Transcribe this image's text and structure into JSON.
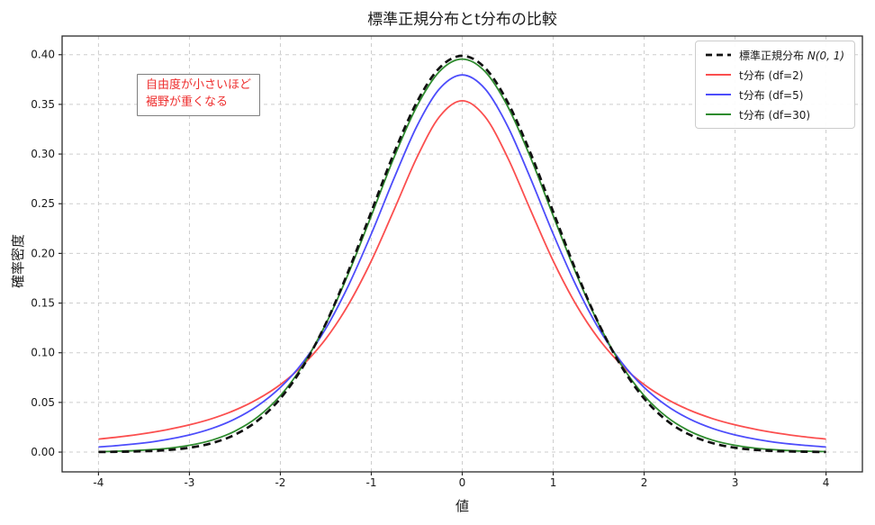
{
  "chart_data": {
    "type": "line",
    "title": "標準正規分布とt分布の比較",
    "xlabel": "値",
    "ylabel": "確率密度",
    "grid": true,
    "grid_style": "dashed",
    "legend_position": "upper right",
    "xlim": [
      -4.4,
      4.4
    ],
    "ylim": [
      -0.0199,
      0.4188
    ],
    "x_ticks": [
      -4,
      -3,
      -2,
      -1,
      0,
      1,
      2,
      3,
      4
    ],
    "x_tick_labels": [
      "-4",
      "-3",
      "-2",
      "-1",
      "0",
      "1",
      "2",
      "3",
      "4"
    ],
    "y_ticks": [
      0.0,
      0.05,
      0.1,
      0.15,
      0.2,
      0.25,
      0.3,
      0.35,
      0.4
    ],
    "y_tick_labels": [
      "0.00",
      "0.05",
      "0.10",
      "0.15",
      "0.20",
      "0.25",
      "0.30",
      "0.35",
      "0.40"
    ],
    "x": [
      -4,
      -3.75,
      -3.5,
      -3.25,
      -3,
      -2.75,
      -2.5,
      -2.25,
      -2,
      -1.75,
      -1.5,
      -1.25,
      -1,
      -0.75,
      -0.5,
      -0.25,
      0,
      0.25,
      0.5,
      0.75,
      1,
      1.25,
      1.5,
      1.75,
      2,
      2.25,
      2.5,
      2.75,
      3,
      3.25,
      3.5,
      3.75,
      4
    ],
    "series": [
      {
        "name": "標準正規分布 N(0, 1)",
        "color": "#111111",
        "dashed": true,
        "line_width": 2.7,
        "z": 4,
        "values": [
          0.0001,
          0.0004,
          0.0009,
          0.002,
          0.0044,
          0.0091,
          0.0175,
          0.0317,
          0.054,
          0.0862,
          0.1295,
          0.1826,
          0.242,
          0.3011,
          0.3521,
          0.3867,
          0.3989,
          0.3867,
          0.3521,
          0.3011,
          0.242,
          0.1826,
          0.1295,
          0.0862,
          0.054,
          0.0317,
          0.0175,
          0.0091,
          0.0044,
          0.002,
          0.0009,
          0.0004,
          0.0001
        ]
      },
      {
        "name": "t分布 (df=2)",
        "color": "#fb4f4f",
        "dashed": false,
        "line_width": 1.8,
        "z": 1,
        "values": [
          0.0131,
          0.0155,
          0.0186,
          0.0225,
          0.0274,
          0.0338,
          0.0422,
          0.0533,
          0.068,
          0.0878,
          0.1141,
          0.1487,
          0.1925,
          0.2438,
          0.2963,
          0.3376,
          0.3536,
          0.3376,
          0.2963,
          0.2438,
          0.1925,
          0.1487,
          0.1141,
          0.0878,
          0.068,
          0.0533,
          0.0422,
          0.0338,
          0.0274,
          0.0225,
          0.0186,
          0.0155,
          0.0131
        ]
      },
      {
        "name": "t分布 (df=5)",
        "color": "#4d4dfb",
        "dashed": false,
        "line_width": 1.8,
        "z": 2,
        "values": [
          0.0051,
          0.0069,
          0.0092,
          0.0126,
          0.0173,
          0.0239,
          0.0333,
          0.0466,
          0.0651,
          0.0905,
          0.1245,
          0.1679,
          0.2197,
          0.2756,
          0.3279,
          0.3657,
          0.3796,
          0.3657,
          0.3279,
          0.2756,
          0.2197,
          0.1679,
          0.1245,
          0.0905,
          0.0651,
          0.0466,
          0.0333,
          0.0239,
          0.0173,
          0.0126,
          0.0092,
          0.0069,
          0.0051
        ]
      },
      {
        "name": "t分布 (df=30)",
        "color": "#2e8b2e",
        "dashed": false,
        "line_width": 1.8,
        "z": 3,
        "values": [
          0.0005,
          0.001,
          0.002,
          0.0037,
          0.0068,
          0.0121,
          0.0211,
          0.0353,
          0.0569,
          0.0877,
          0.129,
          0.1801,
          0.238,
          0.2966,
          0.3479,
          0.3831,
          0.3956,
          0.3831,
          0.3479,
          0.2966,
          0.238,
          0.1801,
          0.129,
          0.0877,
          0.0569,
          0.0353,
          0.0211,
          0.0121,
          0.0068,
          0.0037,
          0.002,
          0.001,
          0.0005
        ]
      }
    ],
    "legend": {
      "items": [
        {
          "label_prefix": "標準正規分布 ",
          "label_math": "N(0, 1)",
          "color": "#111111",
          "dashed": true,
          "line_width": 2.8
        },
        {
          "label_prefix": "t分布 (df=2)",
          "label_math": "",
          "color": "#fb4f4f",
          "dashed": false,
          "line_width": 2
        },
        {
          "label_prefix": "t分布 (df=5)",
          "label_math": "",
          "color": "#4d4dfb",
          "dashed": false,
          "line_width": 2
        },
        {
          "label_prefix": "t分布 (df=30)",
          "label_math": "",
          "color": "#2e8b2e",
          "dashed": false,
          "line_width": 2
        }
      ]
    },
    "annotation": {
      "line1": "自由度が小さいほど",
      "line2": "裾野が重くなる",
      "color": "#ee2f2f"
    }
  }
}
